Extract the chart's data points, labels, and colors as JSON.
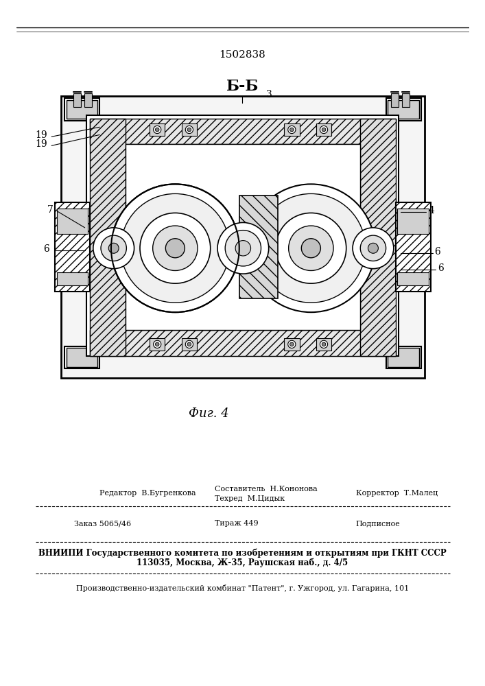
{
  "patent_number": "1502838",
  "fig_label": "Фиг. 4",
  "section_label": "Б-Б",
  "bg_color": "#ffffff",
  "line_color": "#000000",
  "hatch_color": "#000000",
  "editor_line": "Редактор  В.Бугренкова",
  "composer_line1": "Составитель  Н.Кононова",
  "composer_line2": "Техред  М.Цидык",
  "corrector_line": "Корректор  Т.Малец",
  "order_line": "Заказ 5065/46",
  "tirazh_line": "Тираж 449",
  "podpisnoe_line": "Подписное",
  "vniiipi_line1": "ВНИИПИ Государственного комитета по изобретениям и открытиям при ГКНТ СССР",
  "vniiipi_line2": "113035, Москва, Ж-35, Раушская наб., д. 4/5",
  "production_line": "Производственно-издательский комбинат \"Патент\", г. Ужгород, ул. Гагарина, 101"
}
